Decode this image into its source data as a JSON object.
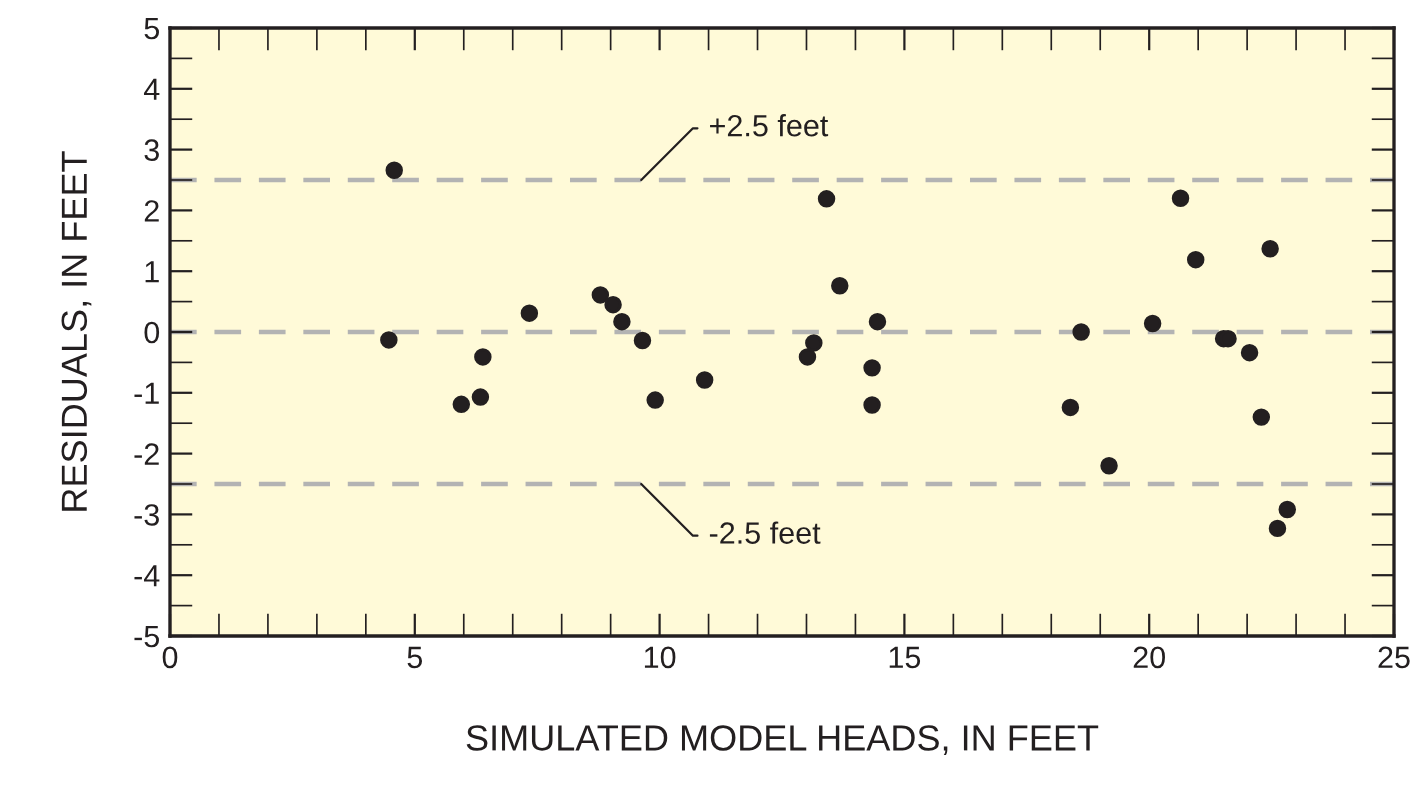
{
  "chart_data": {
    "type": "scatter",
    "xlabel": "SIMULATED MODEL HEADS, IN FEET",
    "ylabel": "RESIDUALS, IN FEET",
    "x": [
      4.58,
      4.47,
      5.95,
      6.34,
      6.39,
      7.34,
      8.79,
      9.05,
      9.23,
      9.65,
      9.91,
      10.92,
      13.02,
      13.15,
      13.41,
      13.68,
      14.34,
      14.34,
      14.45,
      18.39,
      18.61,
      19.18,
      20.07,
      20.64,
      20.95,
      21.52,
      21.61,
      22.05,
      22.29,
      22.47,
      22.62,
      22.82
    ],
    "series": [
      {
        "color": "#231f20",
        "values": [
          2.66,
          -0.13,
          -1.19,
          -1.07,
          -0.41,
          0.31,
          0.61,
          0.45,
          0.17,
          -0.14,
          -1.12,
          -0.79,
          -0.41,
          -0.18,
          2.19,
          0.76,
          -0.59,
          -1.2,
          0.17,
          -1.24,
          0.0,
          -2.2,
          0.14,
          2.2,
          1.19,
          -0.11,
          -0.11,
          -0.34,
          -1.4,
          1.37,
          -3.23,
          -2.92
        ]
      }
    ],
    "marker": "circle",
    "xlim": [
      0,
      25
    ],
    "xticks": [
      0,
      5,
      10,
      15,
      20,
      25
    ],
    "ylim": [
      -5,
      5
    ],
    "yticks": [
      -5,
      -4,
      -3,
      -2,
      -1,
      0,
      1,
      2,
      3,
      4,
      5
    ],
    "ref_lines": [
      {
        "axis": "y",
        "value": 2.5,
        "label": "+2.5 feet",
        "color": "#b3b3b3",
        "line_style": "dashed"
      },
      {
        "axis": "y",
        "value": 0,
        "label": null,
        "color": "#b3b3b3",
        "line_style": "dashed"
      },
      {
        "axis": "y",
        "value": -2.5,
        "label": "-2.5 feet",
        "color": "#b3b3b3",
        "line_style": "dashed"
      }
    ],
    "grid": false,
    "legend": false
  }
}
